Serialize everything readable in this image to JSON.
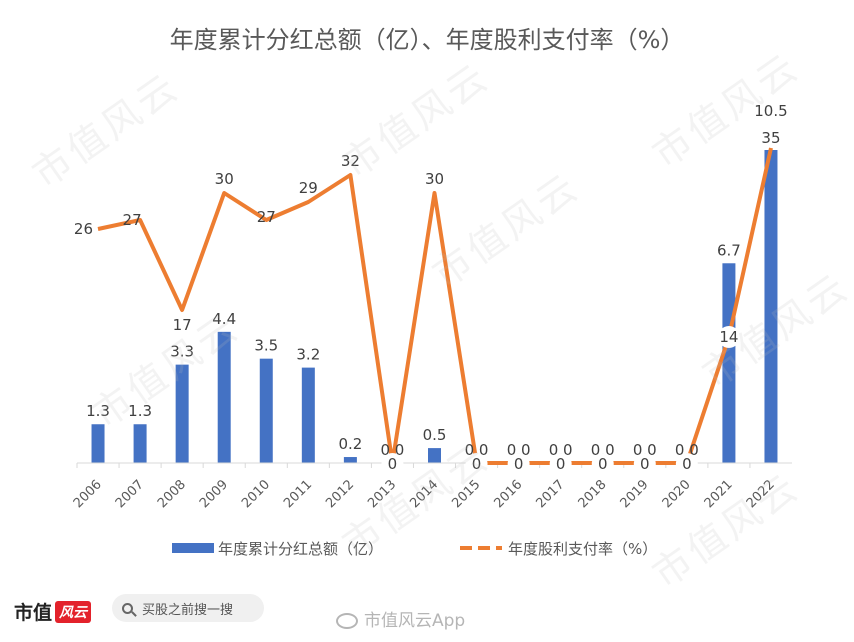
{
  "chart_data": {
    "type": "bar+line",
    "title": "年度累计分红总额（亿）、年度股利支付率（%）",
    "categories": [
      "2006",
      "2007",
      "2008",
      "2009",
      "2010",
      "2011",
      "2012",
      "2013",
      "2014",
      "2015",
      "2016",
      "2017",
      "2018",
      "2019",
      "2020",
      "2021",
      "2022"
    ],
    "series": [
      {
        "name": "年度累计分红总额（亿）",
        "type": "bar",
        "color": "#4472c4",
        "values": [
          1.3,
          1.3,
          3.3,
          4.4,
          3.5,
          3.2,
          0.2,
          0.0,
          0.5,
          0.0,
          0.0,
          0.0,
          0.0,
          0.0,
          0.0,
          6.7,
          10.5
        ],
        "labels": [
          "1.3",
          "1.3",
          "3.3",
          "4.4",
          "3.5",
          "3.2",
          "0.2",
          "0.0",
          "0.5",
          "0.0",
          "0.0",
          "0.0",
          "0.0",
          "0.0",
          "0.0",
          "6.7",
          "10.5"
        ]
      },
      {
        "name": "年度股利支付率（%）",
        "type": "line",
        "color": "#ed7d31",
        "values": [
          26,
          27,
          17,
          30,
          27,
          29,
          32,
          0,
          30,
          0,
          0,
          0,
          0,
          0,
          0,
          14,
          35
        ],
        "labels": [
          "26",
          "27",
          "17",
          "30",
          "27",
          "29",
          "32",
          "0",
          "30",
          "0",
          "0",
          "0",
          "0",
          "0",
          "0",
          "14",
          "35"
        ]
      }
    ],
    "legend": "bottom",
    "grid": false
  },
  "watermark": "市值风云",
  "footer": {
    "brand": "市值",
    "brand_logo": "风云",
    "search_placeholder": "买股之前搜一搜",
    "weibo": "市值风云App"
  }
}
